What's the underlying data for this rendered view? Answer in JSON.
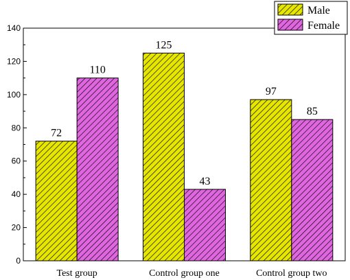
{
  "chart_data": {
    "type": "bar",
    "title": "",
    "xlabel": "",
    "ylabel": "",
    "categories": [
      "Test group",
      "Control group one",
      "Control group two"
    ],
    "series": [
      {
        "name": "Male",
        "values": [
          72,
          125,
          97
        ],
        "color": "#e6e600",
        "hatch_color": "#000000"
      },
      {
        "name": "Female",
        "values": [
          110,
          43,
          85
        ],
        "color": "#e066e0",
        "hatch_color": "#000000"
      }
    ],
    "ylim": [
      0,
      140
    ],
    "yticks": [
      "0",
      "20",
      "40",
      "60",
      "80",
      "100",
      "120",
      "140"
    ],
    "grid": false,
    "legend": "top-right",
    "hatch": "diagonal"
  }
}
